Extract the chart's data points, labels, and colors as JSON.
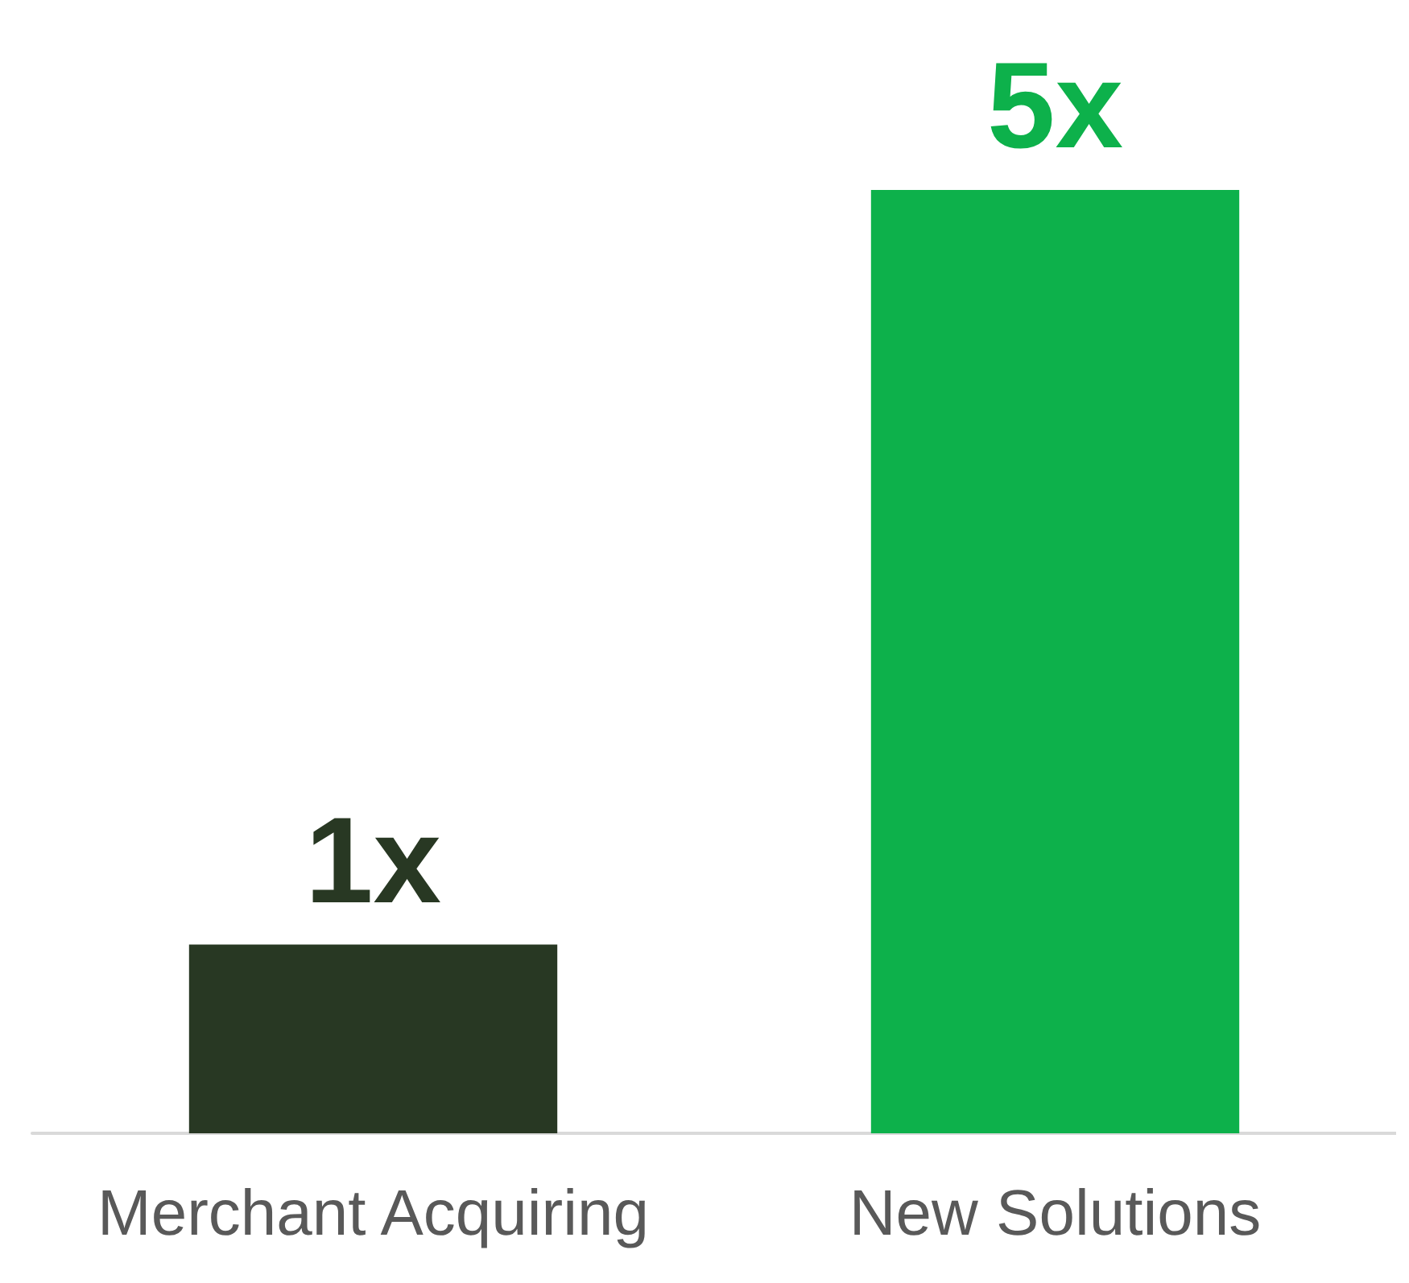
{
  "chart_data": {
    "type": "bar",
    "categories": [
      "Merchant Acquiring",
      "New Solutions"
    ],
    "values": [
      1,
      5
    ],
    "colors": [
      "#283823",
      "#0db14b"
    ],
    "value_labels": [
      "1x",
      "5x"
    ]
  }
}
